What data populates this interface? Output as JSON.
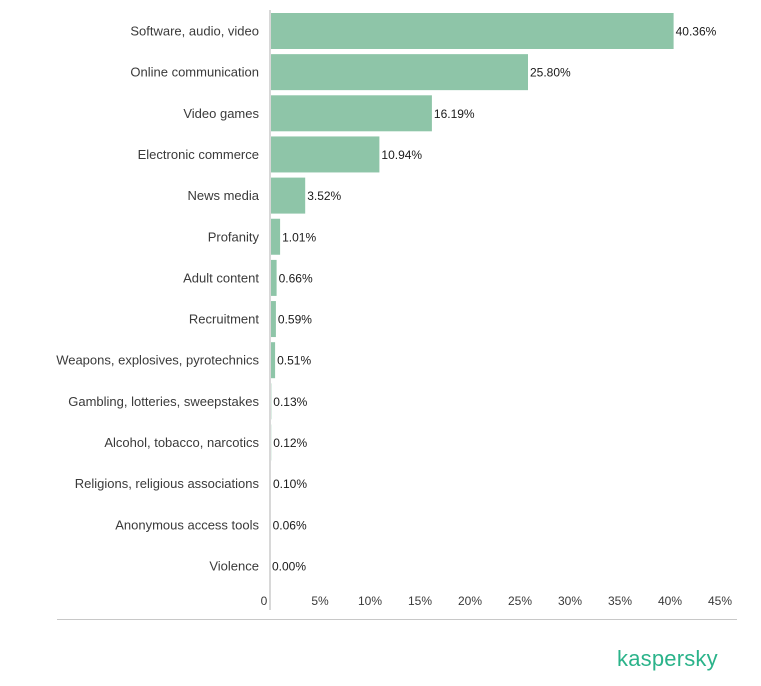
{
  "brand": {
    "name": "kaspersky"
  },
  "colors": {
    "bar": "#8ec5a8",
    "axis": "#b0b0b0",
    "divider": "#c8c8c8",
    "brand": "#2bb38a"
  },
  "chart_data": {
    "type": "bar",
    "orientation": "horizontal",
    "title": "",
    "xlabel": "",
    "ylabel": "",
    "categories": [
      "Software, audio, video",
      "Online communication",
      "Video games",
      "Electronic commerce",
      "News media",
      "Profanity",
      "Adult content",
      "Recruitment",
      "Weapons, explosives, pyrotechnics",
      "Gambling, lotteries, sweepstakes",
      "Alcohol, tobacco, narcotics",
      "Religions, religious associations",
      "Anonymous access tools",
      "Violence"
    ],
    "values": [
      40.36,
      25.8,
      16.19,
      10.94,
      3.52,
      1.01,
      0.66,
      0.59,
      0.51,
      0.13,
      0.12,
      0.1,
      0.06,
      0.0
    ],
    "value_labels": [
      "40.36%",
      "25.80%",
      "16.19%",
      "10.94%",
      "3.52%",
      "1.01%",
      "0.66%",
      "0.59%",
      "0.51%",
      "0.13%",
      "0.12%",
      "0.10%",
      "0.06%",
      "0.00%"
    ],
    "xlim": [
      0,
      45
    ],
    "x_ticks": [
      0,
      5,
      10,
      15,
      20,
      25,
      30,
      35,
      40,
      45
    ],
    "x_tick_labels": [
      "0",
      "5%",
      "10%",
      "15%",
      "20%",
      "25%",
      "30%",
      "35%",
      "40%",
      "45%"
    ],
    "grid": false,
    "legend": "none"
  }
}
